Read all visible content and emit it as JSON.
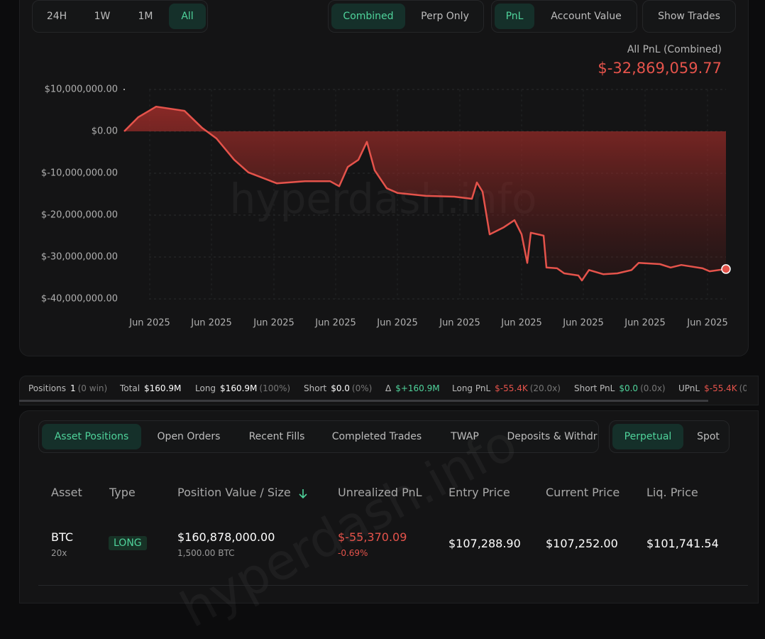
{
  "controls": {
    "timeframes": [
      "24H",
      "1W",
      "1M",
      "All"
    ],
    "modes": [
      "Combined",
      "Perp Only"
    ],
    "metrics": [
      "PnL",
      "Account Value"
    ],
    "show_trades": "Show Trades"
  },
  "chart_data": {
    "type": "area",
    "title": "All PnL (Combined)",
    "subtitle": "$-32,869,059.77",
    "watermark": "hyperdash.info",
    "color": "#e5534b",
    "x": [
      0,
      20,
      45,
      85,
      110,
      130,
      155,
      175,
      215,
      255,
      290,
      303,
      315,
      330,
      342,
      353,
      370,
      385,
      425,
      465,
      490,
      497,
      505,
      515,
      535,
      550,
      560,
      568,
      573,
      591,
      595,
      610,
      620,
      640,
      645,
      655,
      675,
      695,
      715,
      725,
      755,
      770,
      785,
      815,
      825,
      848
    ],
    "values": [
      0,
      3400000,
      5900000,
      4900000,
      800000,
      -1700000,
      -6800000,
      -9800000,
      -12400000,
      -11900000,
      -11900000,
      -13100000,
      -8500000,
      -6800000,
      -2500000,
      -9300000,
      -13600000,
      -14700000,
      -15400000,
      -15600000,
      -16100000,
      -12200000,
      -14400000,
      -24600000,
      -22900000,
      -21200000,
      -24600000,
      -31400000,
      -24200000,
      -24900000,
      -32500000,
      -32700000,
      -33900000,
      -34400000,
      -35600000,
      -33100000,
      -34100000,
      -33900000,
      -33100000,
      -31400000,
      -31700000,
      -32500000,
      -31900000,
      -32700000,
      -33400000,
      -32869059.77
    ],
    "xlim": [
      0,
      848
    ],
    "xticks": [
      {
        "value": 36,
        "label": "Jun 2025"
      },
      {
        "value": 123,
        "label": "Jun 2025"
      },
      {
        "value": 211,
        "label": "Jun 2025"
      },
      {
        "value": 298,
        "label": "Jun 2025"
      },
      {
        "value": 385,
        "label": "Jun 2025"
      },
      {
        "value": 473,
        "label": "Jun 2025"
      },
      {
        "value": 560,
        "label": "Jun 2025"
      },
      {
        "value": 647,
        "label": "Jun 2025"
      },
      {
        "value": 734,
        "label": "Jun 2025"
      },
      {
        "value": 822,
        "label": "Jun 2025"
      }
    ],
    "ylim": [
      -40000000,
      10000000
    ],
    "yticks": [
      {
        "value": 10000000,
        "label": "$10,000,000.00"
      },
      {
        "value": 0,
        "label": "$0.00"
      },
      {
        "value": -10000000,
        "label": "$-10,000,000.00"
      },
      {
        "value": -20000000,
        "label": "$-20,000,000.00"
      },
      {
        "value": -30000000,
        "label": "$-30,000,000.00"
      },
      {
        "value": -40000000,
        "label": "$-40,000,000.00"
      }
    ],
    "grid": true
  },
  "stats": [
    {
      "label": "Positions",
      "value": "1",
      "note": "(0 win)"
    },
    {
      "label": "Total",
      "value": "$160.9M"
    },
    {
      "label": "Long",
      "value": "$160.9M",
      "note": "(100%)"
    },
    {
      "label": "Short",
      "value": "$0.0",
      "note": "(0%)"
    },
    {
      "label": "Δ",
      "value": "$+160.9M"
    },
    {
      "label": "Long PnL",
      "value": "$-55.4K",
      "note": "(20.0x)"
    },
    {
      "label": "Short PnL",
      "value": "$0.0",
      "note": "(0.0x)"
    },
    {
      "label": "UPnL",
      "value": "$-55.4K",
      "note": "(0"
    }
  ],
  "tabs": [
    "Asset Positions",
    "Open Orders",
    "Recent Fills",
    "Completed Trades",
    "TWAP",
    "Deposits & Withdr"
  ],
  "market_tabs": [
    "Perpetual",
    "Spot"
  ],
  "table": {
    "headers": [
      "Asset",
      "Type",
      "Position Value / Size",
      "Unrealized PnL",
      "Entry Price",
      "Current Price",
      "Liq. Price"
    ],
    "rows": [
      {
        "asset": "BTC",
        "leverage": "20x",
        "type": "LONG",
        "value": "$160,878,000.00",
        "size": "1,500.00 BTC",
        "upnl": "$-55,370.09",
        "upnl_pct": "-0.69%",
        "entry": "$107,288.90",
        "current": "$107,252.00",
        "liq": "$101,741.54"
      }
    ]
  }
}
